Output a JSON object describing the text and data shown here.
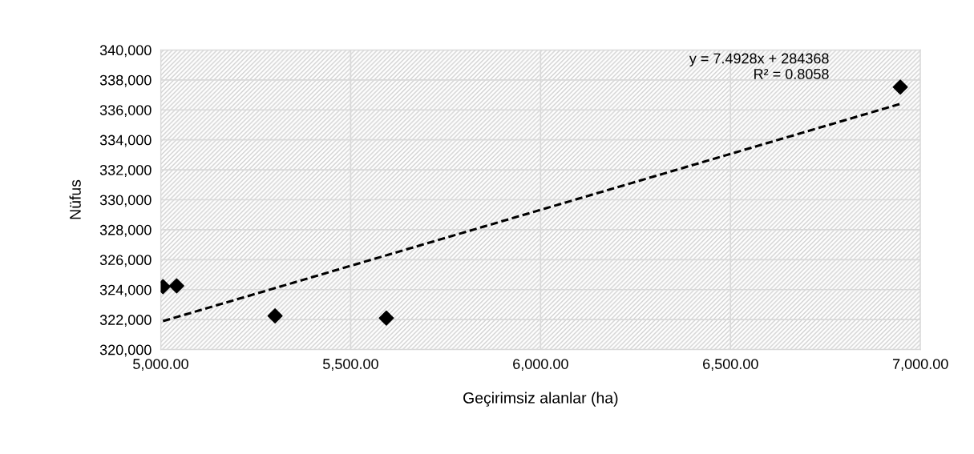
{
  "chart_data": {
    "type": "scatter",
    "xlabel": "Geçirimsiz alanlar (ha)",
    "ylabel": "Nüfus",
    "series": [
      {
        "color": "#000000",
        "marker": "diamond",
        "x": [
          5006,
          5042,
          5301,
          5594,
          6947
        ],
        "values": [
          324200,
          324250,
          322250,
          322100,
          337520
        ]
      },
      {
        "type": "line",
        "color": "#000000",
        "line_style": "dashed",
        "marker": "none",
        "x": [
          5006,
          6947
        ],
        "values": [
          321900,
          336400
        ]
      }
    ],
    "annotations": [
      "y = 7.4928x + 284368\nR² = 0.8058"
    ],
    "xlim": [
      5000,
      7000
    ],
    "xticks": [
      {
        "value": 5000,
        "label": "5,000.00"
      },
      {
        "value": 5500,
        "label": "5,500.00"
      },
      {
        "value": 6000,
        "label": "6,000.00"
      },
      {
        "value": 6500,
        "label": "6,500.00"
      },
      {
        "value": 7000,
        "label": "7,000.00"
      }
    ],
    "ylim": [
      320000,
      340000
    ],
    "yticks": [
      {
        "value": 320000,
        "label": "320,000"
      },
      {
        "value": 322000,
        "label": "322,000"
      },
      {
        "value": 324000,
        "label": "324,000"
      },
      {
        "value": 326000,
        "label": "326,000"
      },
      {
        "value": 328000,
        "label": "328,000"
      },
      {
        "value": 330000,
        "label": "330,000"
      },
      {
        "value": 332000,
        "label": "332,000"
      },
      {
        "value": 334000,
        "label": "334,000"
      },
      {
        "value": 336000,
        "label": "336,000"
      },
      {
        "value": 338000,
        "label": "338,000"
      },
      {
        "value": 340000,
        "label": "340,000"
      }
    ],
    "grid": true,
    "legend": false
  }
}
